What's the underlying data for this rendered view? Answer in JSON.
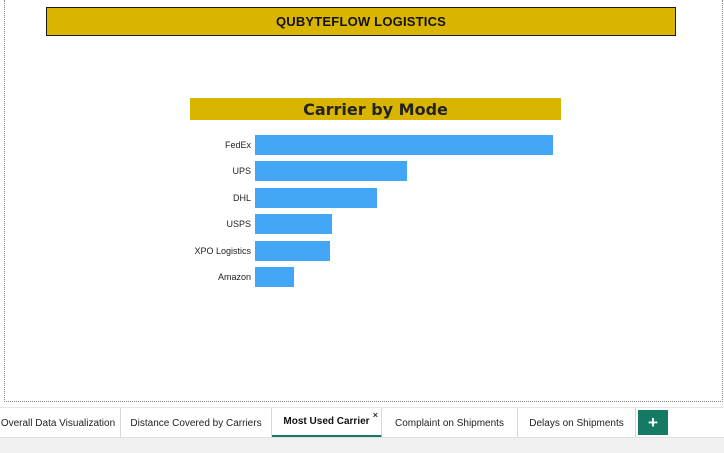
{
  "report": {
    "title": "QUBYTEFLOW LOGISTICS"
  },
  "chart_data": {
    "type": "bar",
    "orientation": "horizontal",
    "title": "Carrier by Mode",
    "categories": [
      "FedEx",
      "UPS",
      "DHL",
      "USPS",
      "XPO Logistics",
      "Amazon"
    ],
    "values": [
      100,
      51,
      41,
      26,
      25,
      13
    ],
    "xlabel": "",
    "ylabel": "",
    "xlim": [
      0,
      100
    ],
    "grid": false,
    "bar_color": "#42a5f5"
  },
  "tabs": [
    {
      "label": "Overall Data Visualization",
      "active": false
    },
    {
      "label": "Distance Covered by Carriers",
      "active": false
    },
    {
      "label": "Most Used Carrier",
      "active": true,
      "close": "×"
    },
    {
      "label": "Complaint on Shipments",
      "active": false
    },
    {
      "label": "Delays on Shipments",
      "active": false
    }
  ],
  "add_tab": {
    "label": "+"
  },
  "colors": {
    "banner": "#d9b500",
    "accent": "#147a63"
  }
}
